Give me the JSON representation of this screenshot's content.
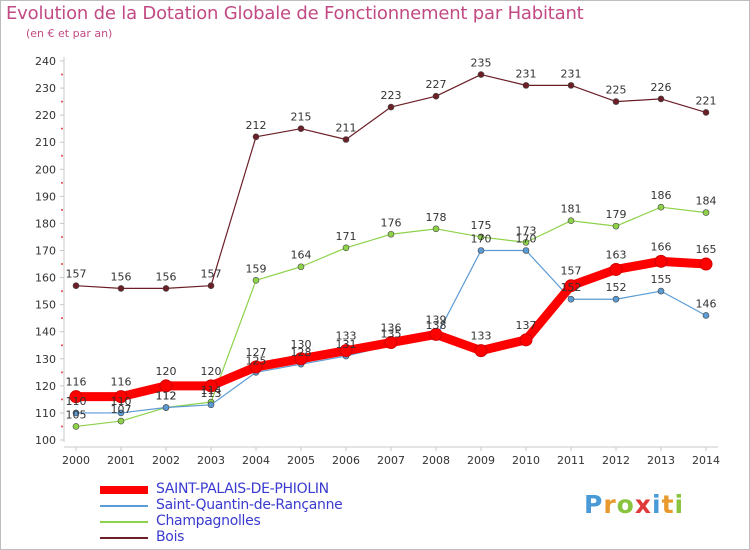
{
  "title": "Evolution de la Dotation Globale de Fonctionnement par Habitant",
  "subtitle": "(en € et par an)",
  "logo_text": "Proxiti",
  "chart_data": {
    "type": "line",
    "title": "Evolution de la Dotation Globale de Fonctionnement par Habitant",
    "subtitle": "(en € et par an)",
    "xlabel": "",
    "ylabel": "",
    "x": [
      2000,
      2001,
      2002,
      2003,
      2004,
      2005,
      2006,
      2007,
      2008,
      2009,
      2010,
      2011,
      2012,
      2013,
      2014
    ],
    "ylim": [
      100,
      240
    ],
    "yticks": [
      100,
      110,
      120,
      130,
      140,
      150,
      160,
      170,
      180,
      190,
      200,
      210,
      220,
      230,
      240
    ],
    "grid": false,
    "legend_position": "bottom-left",
    "series": [
      {
        "name": "Bois",
        "color": "#6b1f26",
        "values": [
          157,
          156,
          156,
          157,
          212,
          215,
          211,
          223,
          227,
          235,
          231,
          231,
          225,
          226,
          221
        ]
      },
      {
        "name": "Champagnolles",
        "color": "#8ed24a",
        "values": [
          105,
          107,
          112,
          114,
          159,
          164,
          171,
          176,
          178,
          175,
          173,
          181,
          179,
          186,
          184
        ]
      },
      {
        "name": "Saint-Quantin-de-Rançanne",
        "color": "#5a9bd4",
        "values": [
          110,
          110,
          112,
          113,
          125,
          128,
          131,
          135,
          138,
          170,
          170,
          152,
          152,
          155,
          146
        ]
      },
      {
        "name": "SAINT-PALAIS-DE-PHIOLIN",
        "color": "#ff0000",
        "values": [
          116,
          116,
          120,
          120,
          127,
          130,
          133,
          136,
          139,
          133,
          137,
          157,
          163,
          166,
          165
        ]
      }
    ]
  }
}
